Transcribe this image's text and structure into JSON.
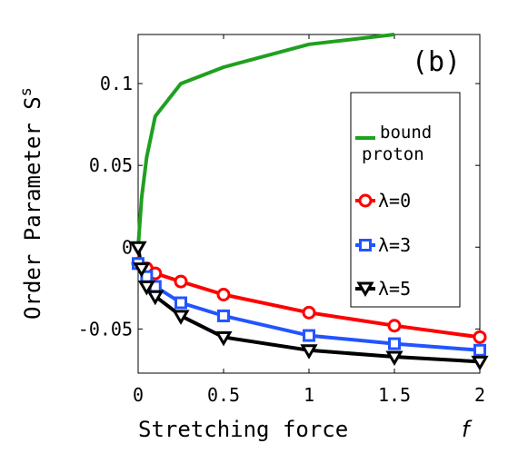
{
  "panel_label": "(b)",
  "chart_data": {
    "type": "line",
    "xlabel": "Stretching force",
    "xlabel_symbol": "f",
    "ylabel": "Order Parameter S",
    "ylabel_sub": "s",
    "xlim": [
      0,
      2
    ],
    "ylim": [
      -0.077,
      0.13
    ],
    "grid": false,
    "legend_position": "right",
    "x_ticks": [
      {
        "value": 0,
        "label": "0"
      },
      {
        "value": 0.5,
        "label": "0.5"
      },
      {
        "value": 1,
        "label": "1"
      },
      {
        "value": 1.5,
        "label": "1.5"
      },
      {
        "value": 2,
        "label": "2"
      }
    ],
    "y_ticks": [
      {
        "value": -0.05,
        "label": "-0.05"
      },
      {
        "value": 0,
        "label": "0"
      },
      {
        "value": 0.05,
        "label": "0.05"
      },
      {
        "value": 0.1,
        "label": "0.1"
      }
    ],
    "series": [
      {
        "name": "bound proton",
        "color": "#1fa01f",
        "marker": "none",
        "x": [
          0,
          0.02,
          0.05,
          0.1,
          0.25,
          0.5,
          1.0,
          1.5
        ],
        "y": [
          0,
          0.03,
          0.055,
          0.08,
          0.1,
          0.11,
          0.124,
          0.13
        ]
      },
      {
        "name": "λ=0",
        "color": "#ff0000",
        "marker": "circle",
        "x": [
          0,
          0.05,
          0.1,
          0.25,
          0.5,
          1.0,
          1.5,
          2.0
        ],
        "y": [
          -0.01,
          -0.013,
          -0.016,
          -0.021,
          -0.029,
          -0.04,
          -0.048,
          -0.055
        ]
      },
      {
        "name": "λ=3",
        "color": "#2255ff",
        "marker": "square",
        "x": [
          0,
          0.05,
          0.1,
          0.25,
          0.5,
          1.0,
          1.5,
          2.0
        ],
        "y": [
          -0.01,
          -0.018,
          -0.024,
          -0.034,
          -0.042,
          -0.054,
          -0.059,
          -0.063
        ]
      },
      {
        "name": "λ=5",
        "color": "#000000",
        "marker": "triangle-down",
        "x": [
          0,
          0.02,
          0.05,
          0.1,
          0.25,
          0.5,
          1.0,
          1.5,
          2.0
        ],
        "y": [
          0.0,
          -0.013,
          -0.024,
          -0.03,
          -0.042,
          -0.055,
          -0.063,
          -0.067,
          -0.07
        ]
      }
    ],
    "legend": {
      "bound_line1": "bound",
      "bound_line2": "proton"
    }
  }
}
